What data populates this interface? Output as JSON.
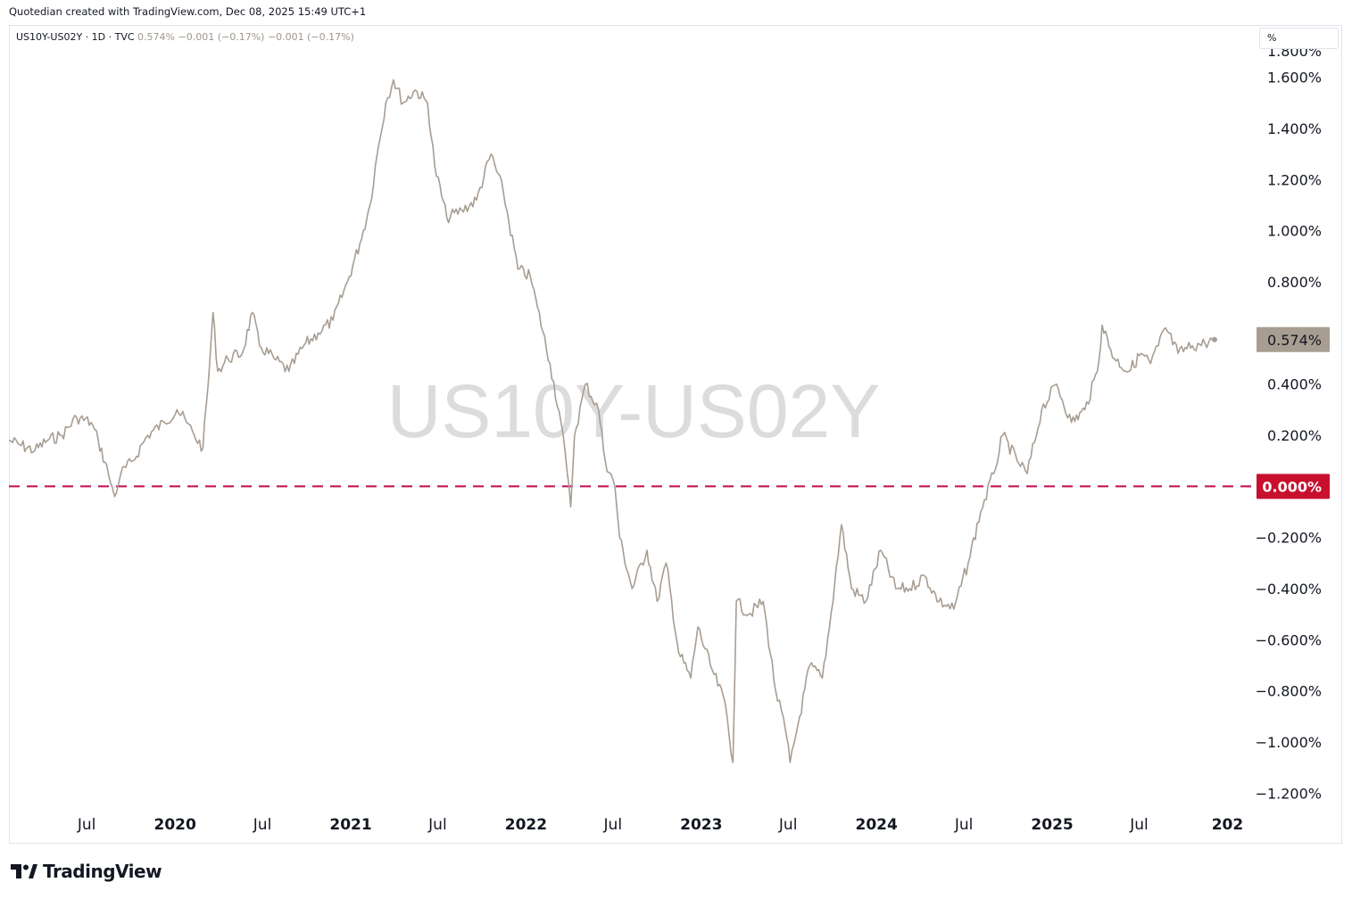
{
  "header": {
    "created_text": "Quotedian created with TradingView.com, Dec 08, 2025 15:49 UTC+1"
  },
  "legend": {
    "symbol": "US10Y-US02Y · 1D · TVC",
    "last": "0.574%",
    "change1": "−0.001 (−0.17%)",
    "change2": "−0.001 (−0.17%)"
  },
  "unit_label": "%",
  "watermark": "US10Y-US02Y",
  "footer": {
    "brand": "TradingView"
  },
  "colors": {
    "line": "#a89d92",
    "zero_line": "#c2185b",
    "last_badge": "#a89d92",
    "zero_badge": "#c8102e"
  },
  "chart_data": {
    "type": "line",
    "title": "US10Y-US02Y",
    "xlabel": "",
    "ylabel": "%",
    "ylim": [
      -1.3,
      1.7
    ],
    "y_ticks": [
      "1.600%",
      "1.400%",
      "1.200%",
      "1.000%",
      "0.800%",
      "0.400%",
      "0.200%",
      "−0.200%",
      "−0.400%",
      "−0.600%",
      "−0.800%",
      "−1.000%",
      "−1.200%"
    ],
    "y_tick_values": [
      1.6,
      1.4,
      1.2,
      1.0,
      0.8,
      0.4,
      0.2,
      -0.2,
      -0.4,
      -0.6,
      -0.8,
      -1.0,
      -1.2
    ],
    "top_partial_tick": "1.800%",
    "x_ticks": [
      {
        "label": "Jul",
        "date": "2019-07-01",
        "bold": false
      },
      {
        "label": "2020",
        "date": "2020-01-01",
        "bold": true
      },
      {
        "label": "Jul",
        "date": "2020-07-01",
        "bold": false
      },
      {
        "label": "2021",
        "date": "2021-01-01",
        "bold": true
      },
      {
        "label": "Jul",
        "date": "2021-07-01",
        "bold": false
      },
      {
        "label": "2022",
        "date": "2022-01-01",
        "bold": true
      },
      {
        "label": "Jul",
        "date": "2022-07-01",
        "bold": false
      },
      {
        "label": "2023",
        "date": "2023-01-01",
        "bold": true
      },
      {
        "label": "Jul",
        "date": "2023-07-01",
        "bold": false
      },
      {
        "label": "2024",
        "date": "2024-01-01",
        "bold": true
      },
      {
        "label": "Jul",
        "date": "2024-07-01",
        "bold": false
      },
      {
        "label": "2025",
        "date": "2025-01-01",
        "bold": true
      },
      {
        "label": "Jul",
        "date": "2025-07-01",
        "bold": false
      },
      {
        "label": "202",
        "date": "2026-01-01",
        "bold": true
      }
    ],
    "x_range": [
      "2019-01-20",
      "2026-01-15"
    ],
    "series": [
      {
        "points": [
          [
            "2019-01-20",
            0.18
          ],
          [
            "2019-02-15",
            0.16
          ],
          [
            "2019-03-15",
            0.14
          ],
          [
            "2019-04-10",
            0.18
          ],
          [
            "2019-05-10",
            0.2
          ],
          [
            "2019-06-10",
            0.27
          ],
          [
            "2019-07-10",
            0.25
          ],
          [
            "2019-07-25",
            0.18
          ],
          [
            "2019-08-15",
            0.05
          ],
          [
            "2019-08-28",
            -0.04
          ],
          [
            "2019-09-10",
            0.05
          ],
          [
            "2019-10-05",
            0.1
          ],
          [
            "2019-11-05",
            0.2
          ],
          [
            "2019-12-10",
            0.25
          ],
          [
            "2020-01-05",
            0.3
          ],
          [
            "2020-01-25",
            0.25
          ],
          [
            "2020-02-10",
            0.2
          ],
          [
            "2020-02-28",
            0.15
          ],
          [
            "2020-03-10",
            0.4
          ],
          [
            "2020-03-20",
            0.68
          ],
          [
            "2020-03-30",
            0.45
          ],
          [
            "2020-04-20",
            0.5
          ],
          [
            "2020-05-20",
            0.52
          ],
          [
            "2020-06-10",
            0.68
          ],
          [
            "2020-06-25",
            0.55
          ],
          [
            "2020-07-25",
            0.5
          ],
          [
            "2020-08-25",
            0.45
          ],
          [
            "2020-09-25",
            0.55
          ],
          [
            "2020-10-25",
            0.6
          ],
          [
            "2020-11-25",
            0.65
          ],
          [
            "2020-12-25",
            0.8
          ],
          [
            "2021-01-20",
            0.95
          ],
          [
            "2021-02-10",
            1.1
          ],
          [
            "2021-02-25",
            1.3
          ],
          [
            "2021-03-15",
            1.5
          ],
          [
            "2021-03-31",
            1.59
          ],
          [
            "2021-04-20",
            1.5
          ],
          [
            "2021-05-15",
            1.55
          ],
          [
            "2021-06-10",
            1.5
          ],
          [
            "2021-06-25",
            1.25
          ],
          [
            "2021-07-20",
            1.05
          ],
          [
            "2021-08-20",
            1.08
          ],
          [
            "2021-09-20",
            1.12
          ],
          [
            "2021-10-20",
            1.3
          ],
          [
            "2021-11-15",
            1.15
          ],
          [
            "2021-12-15",
            0.85
          ],
          [
            "2022-01-10",
            0.82
          ],
          [
            "2022-01-25",
            0.7
          ],
          [
            "2022-02-20",
            0.48
          ],
          [
            "2022-03-15",
            0.25
          ],
          [
            "2022-03-28",
            0.05
          ],
          [
            "2022-04-04",
            -0.08
          ],
          [
            "2022-04-12",
            0.2
          ],
          [
            "2022-05-05",
            0.4
          ],
          [
            "2022-06-01",
            0.3
          ],
          [
            "2022-06-15",
            0.1
          ],
          [
            "2022-07-05",
            0.0
          ],
          [
            "2022-07-15",
            -0.2
          ],
          [
            "2022-08-10",
            -0.4
          ],
          [
            "2022-09-10",
            -0.25
          ],
          [
            "2022-10-01",
            -0.45
          ],
          [
            "2022-10-20",
            -0.3
          ],
          [
            "2022-11-15",
            -0.65
          ],
          [
            "2022-12-10",
            -0.75
          ],
          [
            "2022-12-25",
            -0.55
          ],
          [
            "2023-01-20",
            -0.7
          ],
          [
            "2023-02-20",
            -0.85
          ],
          [
            "2023-03-08",
            -1.08
          ],
          [
            "2023-03-15",
            -0.45
          ],
          [
            "2023-04-10",
            -0.5
          ],
          [
            "2023-05-10",
            -0.45
          ],
          [
            "2023-06-05",
            -0.8
          ],
          [
            "2023-06-25",
            -0.95
          ],
          [
            "2023-07-05",
            -1.08
          ],
          [
            "2023-07-25",
            -0.9
          ],
          [
            "2023-08-15",
            -0.7
          ],
          [
            "2023-09-10",
            -0.75
          ],
          [
            "2023-09-25",
            -0.55
          ],
          [
            "2023-10-20",
            -0.15
          ],
          [
            "2023-11-10",
            -0.4
          ],
          [
            "2023-12-10",
            -0.45
          ],
          [
            "2024-01-10",
            -0.25
          ],
          [
            "2024-02-10",
            -0.4
          ],
          [
            "2024-03-10",
            -0.4
          ],
          [
            "2024-04-10",
            -0.35
          ],
          [
            "2024-05-10",
            -0.45
          ],
          [
            "2024-06-10",
            -0.48
          ],
          [
            "2024-07-10",
            -0.3
          ],
          [
            "2024-08-05",
            -0.1
          ],
          [
            "2024-09-01",
            0.05
          ],
          [
            "2024-09-20",
            0.2
          ],
          [
            "2024-10-20",
            0.1
          ],
          [
            "2024-11-10",
            0.05
          ],
          [
            "2024-12-10",
            0.3
          ],
          [
            "2025-01-10",
            0.4
          ],
          [
            "2025-02-10",
            0.25
          ],
          [
            "2025-03-10",
            0.3
          ],
          [
            "2025-04-05",
            0.45
          ],
          [
            "2025-04-15",
            0.63
          ],
          [
            "2025-05-10",
            0.5
          ],
          [
            "2025-06-10",
            0.45
          ],
          [
            "2025-07-05",
            0.52
          ],
          [
            "2025-07-25",
            0.48
          ],
          [
            "2025-08-10",
            0.55
          ],
          [
            "2025-08-25",
            0.62
          ],
          [
            "2025-09-20",
            0.52
          ],
          [
            "2025-10-20",
            0.55
          ],
          [
            "2025-11-15",
            0.56
          ],
          [
            "2025-12-05",
            0.574
          ]
        ]
      }
    ],
    "last_value_label": "0.574%",
    "zero_line": 0,
    "zero_label": "0.000%",
    "grid": false,
    "legend_position": "top-left"
  }
}
